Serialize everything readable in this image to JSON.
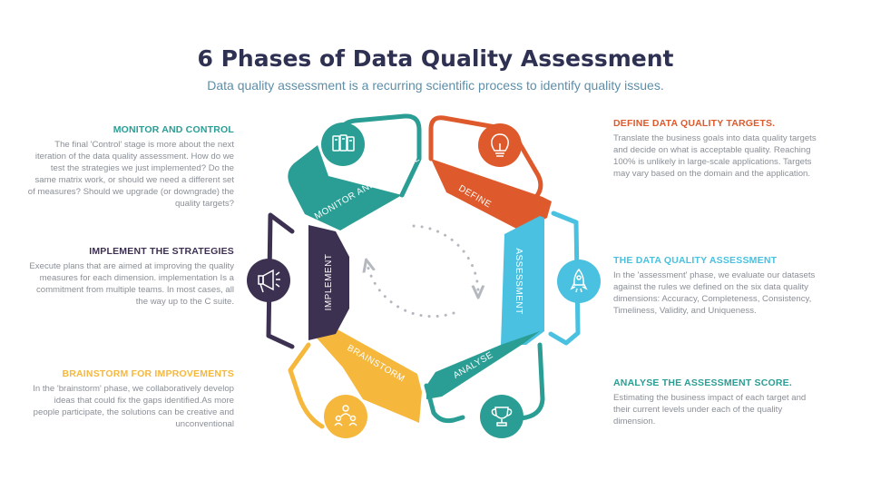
{
  "title": "6 Phases of Data Quality Assessment",
  "subtitle": "Data quality assessment is a recurring scientific process to identify quality issues.",
  "colors": {
    "monitor": "#2a9e94",
    "define": "#de5a2c",
    "assessment": "#4ac1e0",
    "analyse": "#2a9e94",
    "brainstorm": "#f5b83d",
    "implement": "#3d3152",
    "arrows": "#b5b9bf"
  },
  "phases": {
    "monitor": {
      "segment_label": "MONITOR AND CONTROL",
      "icon": "documents-icon",
      "heading": "MONITOR AND CONTROL",
      "text": "The final 'Control' stage is more about the next iteration of the data quality assessment. How do we test the strategies we just implemented? Do the same matrix work, or should we need a different set of measures? Should we upgrade (or downgrade) the quality targets?"
    },
    "define": {
      "segment_label": "DEFINE",
      "icon": "lightbulb-icon",
      "heading": "DEFINE DATA QUALITY TARGETS.",
      "text": "Translate the business goals into data quality targets and decide on what is acceptable quality. Reaching 100% is unlikely in large-scale applications. Targets may vary based on the domain and the application."
    },
    "assessment": {
      "segment_label": "ASSESSMENT",
      "icon": "rocket-icon",
      "heading": "THE DATA QUALITY ASSESSMENT",
      "text": "In the 'assessment' phase, we evaluate our datasets against the rules we defined on the six data quality dimensions: Accuracy, Completeness, Consistency, Timeliness, Validity, and Uniqueness."
    },
    "analyse": {
      "segment_label": "ANALYSE",
      "icon": "trophy-icon",
      "heading": "ANALYSE THE ASSESSMENT SCORE.",
      "text": "Estimating the business impact of each target and their current levels under each of the quality dimension."
    },
    "brainstorm": {
      "segment_label": "BRAINSTORM",
      "icon": "team-icon",
      "heading": "BRAINSTORM FOR IMPROVEMENTS",
      "text": "In the 'brainstorm' phase, we collaboratively develop ideas that could fix the gaps identified.As more people participate, the solutions can be creative and unconventional"
    },
    "implement": {
      "segment_label": "IMPLEMENT",
      "icon": "megaphone-icon",
      "heading": "IMPLEMENT THE STRATEGIES",
      "text": "Execute plans that are aimed at improving the quality measures for each dimension. implementation Is a commitment from multiple teams. In most cases, all the way up to the C suite."
    }
  }
}
